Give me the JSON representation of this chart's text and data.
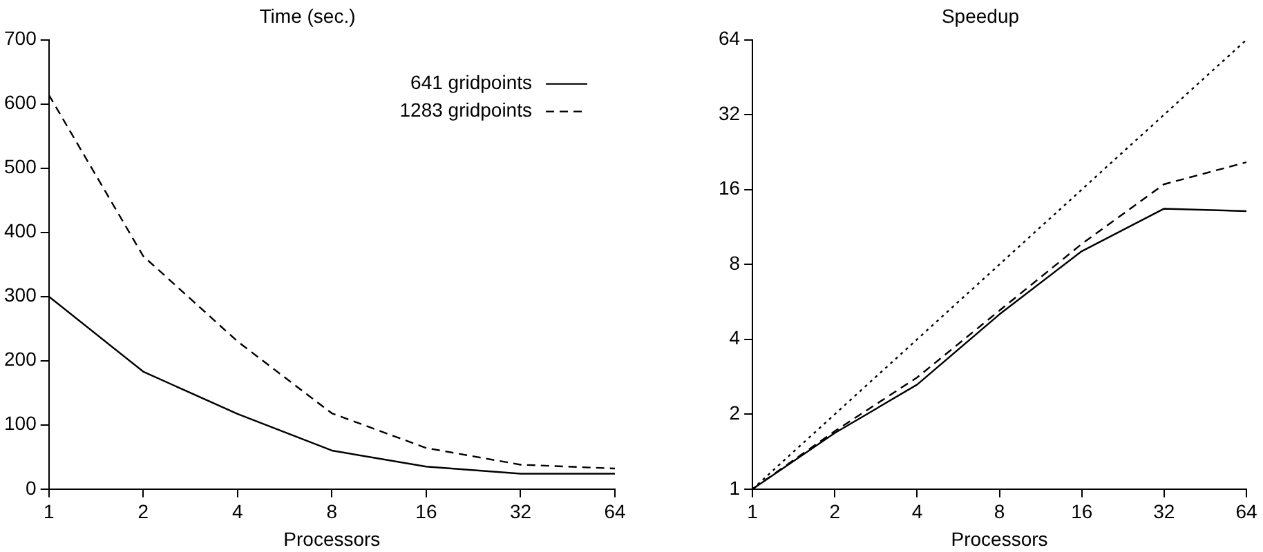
{
  "chart_data": [
    {
      "type": "line",
      "title": "Time (sec.)",
      "xlabel": "Processors",
      "log": "x",
      "x": [
        1,
        2,
        4,
        8,
        16,
        32,
        64
      ],
      "xlim": [
        1,
        64
      ],
      "xticks": [
        1,
        2,
        4,
        8,
        16,
        32,
        64
      ],
      "ylim": [
        0,
        700
      ],
      "yticks": [
        0,
        100,
        200,
        300,
        400,
        500,
        600,
        700
      ],
      "grid": false,
      "legend": "top right",
      "marker": "none",
      "series": [
        {
          "name": "641 gridpoints",
          "color": "#000000",
          "line_style": "solid",
          "values": [
            300,
            183,
            117,
            60,
            35,
            24,
            24
          ]
        },
        {
          "name": "1283 gridpoints",
          "color": "#000000",
          "line_style": "dashed",
          "values": [
            614,
            363,
            230,
            118,
            64,
            38,
            32
          ]
        }
      ]
    },
    {
      "type": "line",
      "title": "Speedup",
      "xlabel": "Processors",
      "log": "xy",
      "x": [
        1,
        2,
        4,
        8,
        16,
        32,
        64
      ],
      "xlim": [
        1,
        64
      ],
      "xticks": [
        1,
        2,
        4,
        8,
        16,
        32,
        64
      ],
      "ylim": [
        1,
        64
      ],
      "yticks": [
        1,
        2,
        4,
        8,
        16,
        32,
        64
      ],
      "grid": false,
      "marker": "none",
      "series": [
        {
          "color": "#000000",
          "line_style": "solid",
          "values": [
            1,
            1.68,
            2.63,
            5.04,
            9.04,
            13.4,
            13.1
          ]
        },
        {
          "color": "#000000",
          "line_style": "dashed",
          "values": [
            1,
            1.71,
            2.81,
            5.22,
            9.67,
            16.8,
            20.6
          ]
        },
        {
          "color": "#000000",
          "line_style": "dotted",
          "values": [
            1,
            2,
            4,
            8,
            16,
            32,
            64
          ]
        }
      ]
    }
  ]
}
